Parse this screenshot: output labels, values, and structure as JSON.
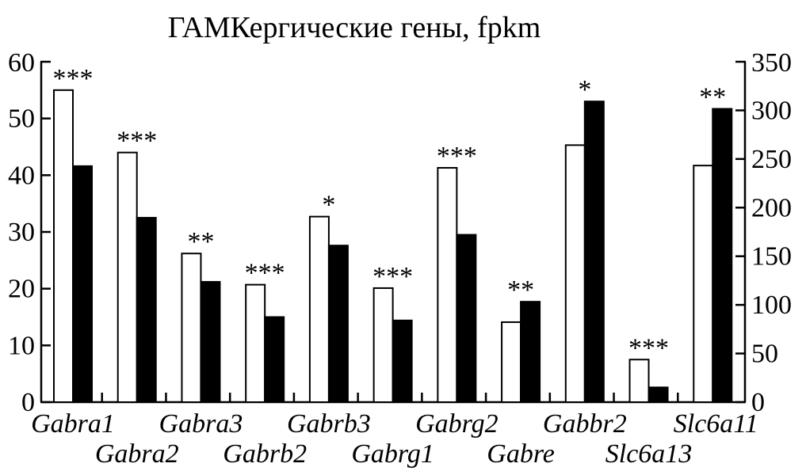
{
  "chart_data": {
    "type": "bar",
    "title": "ГАМКергические гены, fpkm",
    "categories": [
      "Gabra1",
      "Gabra2",
      "Gabra3",
      "Gabrb2",
      "Gabrb3",
      "Gabrg1",
      "Gabrg2",
      "Gabre",
      "Gabbr2",
      "Slc6a13",
      "Slc6a11"
    ],
    "series": [
      {
        "values": [
          55,
          44,
          26.2,
          20.7,
          32.7,
          20.1,
          41.3,
          14.1,
          45.3,
          7.5,
          41.7
        ]
      },
      {
        "values": [
          41.6,
          32.5,
          21.2,
          15.0,
          27.6,
          14.4,
          29.5,
          17.7,
          53.0,
          2.6,
          51.7
        ]
      }
    ],
    "significance": [
      "***",
      "***",
      "**",
      "***",
      "*",
      "***",
      "***",
      "**",
      "*",
      "***",
      "**"
    ],
    "y_left": {
      "ylim": [
        0,
        60
      ],
      "ticks": [
        0,
        10,
        20,
        30,
        40,
        50,
        60
      ]
    },
    "y_right": {
      "ylim": [
        0,
        350
      ],
      "ticks": [
        0,
        50,
        100,
        150,
        200,
        250,
        300,
        350
      ]
    },
    "colors": {
      "series1_fill": "#ffffff",
      "series2_fill": "#000000",
      "axis": "#000000"
    },
    "legend": "none",
    "grid": false
  }
}
